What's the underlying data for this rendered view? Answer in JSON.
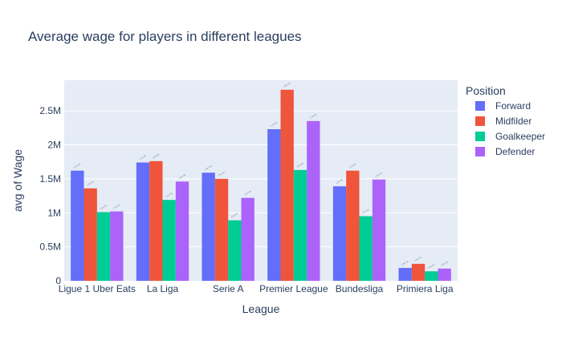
{
  "chart_data": {
    "type": "bar",
    "title": "Average wage for players in different leagues",
    "xlabel": "League",
    "ylabel": "avg of Wage",
    "categories": [
      "Ligue 1 Uber Eats",
      "La Liga",
      "Serie A",
      "Premier League",
      "Bundesliga",
      "Primiera Liga"
    ],
    "ylim": [
      0,
      2950000
    ],
    "yticks": [
      0,
      500000,
      1000000,
      1500000,
      2000000,
      2500000
    ],
    "ytick_labels": [
      "0",
      "0.5M",
      "1M",
      "1.5M",
      "2M",
      "2.5M"
    ],
    "grid": true,
    "legend_title": "Position",
    "legend_position": "right",
    "series": [
      {
        "name": "Forward",
        "color": "#636efa",
        "values": [
          1620000,
          1740000,
          1590000,
          2230000,
          1390000,
          190000
        ],
        "labels": [
          "1.6e+06",
          "1.7e+06",
          "1.6e+06",
          "2.2e+06",
          "1.4e+06",
          "1.9e+05"
        ]
      },
      {
        "name": "Midfilder",
        "color": "#ef553b",
        "values": [
          1360000,
          1760000,
          1500000,
          2810000,
          1620000,
          250000
        ],
        "labels": [
          "1.4e+06",
          "1.8e+06",
          "1.5e+06",
          "2.8e+06",
          "1.6e+06",
          "2.5e+05"
        ]
      },
      {
        "name": "Goalkeeper",
        "color": "#00cc96",
        "values": [
          1010000,
          1190000,
          890000,
          1630000,
          950000,
          140000
        ],
        "labels": [
          "1.0e+06",
          "1.2e+06",
          "8.9e+05",
          "1.6e+06",
          "9.5e+05",
          "1.4e+05"
        ]
      },
      {
        "name": "Defender",
        "color": "#ab63fa",
        "values": [
          1020000,
          1460000,
          1220000,
          2350000,
          1490000,
          180000
        ],
        "labels": [
          "1.0e+06",
          "1.5e+06",
          "1.2e+06",
          "2.4e+06",
          "1.5e+06",
          "1.8e+05"
        ]
      }
    ]
  },
  "colors": {
    "plot_background": "#e5ecf6",
    "gridline": "#ffffff",
    "text": "#2a3f5f"
  }
}
